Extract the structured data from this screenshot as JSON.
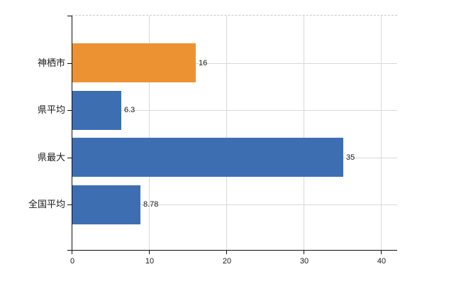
{
  "chart_data": {
    "type": "bar",
    "orientation": "horizontal",
    "title": "",
    "xlabel": "",
    "ylabel": "",
    "categories": [
      "神栖市",
      "県平均",
      "県最大",
      "全国平均"
    ],
    "values": [
      16,
      6.3,
      35,
      8.78
    ],
    "value_labels": [
      "16",
      "6.3",
      "35",
      "8.78"
    ],
    "bar_colors": [
      "#EC9232",
      "#3D6EB2",
      "#3D6EB2",
      "#3D6EB2"
    ],
    "x_tick_values": [
      0,
      10,
      20,
      30,
      40
    ],
    "x_tick_labels": [
      "0",
      "10",
      "20",
      "30",
      "40"
    ],
    "xlim": [
      0,
      42
    ],
    "grid": true,
    "legend": false,
    "highlighted_category": "神栖市"
  },
  "colors": {
    "background": "#ffffff",
    "bar_blue": "#3D6EB2",
    "bar_orange": "#EC9232",
    "axis": "#111111",
    "vertical_gridline": "#d9d9d9",
    "horizontal_gridline": "#d6dbd6",
    "top_boundary_dashed": "#c9c9c9",
    "text": "#1a1a1a"
  }
}
